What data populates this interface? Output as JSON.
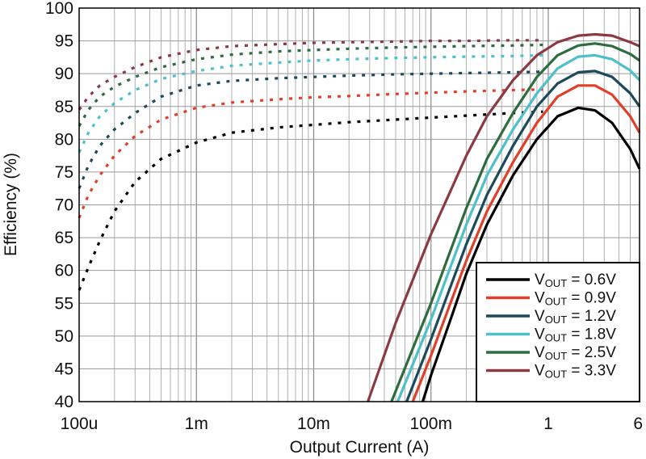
{
  "chart_data": {
    "type": "line",
    "xlabel": "Output Current (A)",
    "ylabel": "Efficiency (%)",
    "x_scale": "log",
    "xlim": [
      0.0001,
      6
    ],
    "ylim": [
      40,
      100
    ],
    "grid": true,
    "x_ticks": [
      {
        "value": 0.0001,
        "label": "100u"
      },
      {
        "value": 0.001,
        "label": "1m"
      },
      {
        "value": 0.01,
        "label": "10m"
      },
      {
        "value": 0.1,
        "label": "100m"
      },
      {
        "value": 1,
        "label": "1"
      },
      {
        "value": 6,
        "label": "6"
      }
    ],
    "y_ticks": [
      40,
      45,
      50,
      55,
      60,
      65,
      70,
      75,
      80,
      85,
      90,
      95,
      100
    ],
    "legend": {
      "placement": "bottom-right",
      "entries": [
        {
          "prefix": "V",
          "sub": "OUT",
          "suffix": " = 0.6V"
        },
        {
          "prefix": "V",
          "sub": "OUT",
          "suffix": " = 0.9V"
        },
        {
          "prefix": "V",
          "sub": "OUT",
          "suffix": " = 1.2V"
        },
        {
          "prefix": "V",
          "sub": "OUT",
          "suffix": " = 1.8V"
        },
        {
          "prefix": "V",
          "sub": "OUT",
          "suffix": " = 2.5V"
        },
        {
          "prefix": "V",
          "sub": "OUT",
          "suffix": " = 3.3V"
        }
      ]
    },
    "series": [
      {
        "name": "VOUT = 0.6V",
        "color": "#000000",
        "light_load_dotted": {
          "x": [
            0.0001,
            0.00012,
            0.00015,
            0.0002,
            0.0003,
            0.0005,
            0.001,
            0.002,
            0.005,
            0.01,
            0.02,
            0.05,
            0.1,
            0.2,
            0.5,
            0.9
          ],
          "y": [
            57,
            60.5,
            64.5,
            69,
            73.5,
            77,
            79.5,
            81,
            81.8,
            82.2,
            82.6,
            83,
            83.3,
            83.6,
            84,
            84.2
          ]
        },
        "heavy_load_solid": {
          "x": [
            0.085,
            0.1,
            0.15,
            0.2,
            0.3,
            0.5,
            0.8,
            1.2,
            1.8,
            2.5,
            3.5,
            5,
            6
          ],
          "y": [
            40,
            44,
            53,
            59.5,
            67,
            74.5,
            80,
            83.5,
            84.8,
            84.4,
            82.5,
            78.5,
            75.5
          ]
        }
      },
      {
        "name": "VOUT = 0.9V",
        "color": "#e0402a",
        "light_load_dotted": {
          "x": [
            0.0001,
            0.00012,
            0.00015,
            0.0002,
            0.0003,
            0.0005,
            0.001,
            0.002,
            0.005,
            0.01,
            0.02,
            0.05,
            0.1,
            0.2,
            0.5,
            0.9
          ],
          "y": [
            68,
            71.5,
            74.5,
            77.5,
            80.5,
            83,
            84.8,
            85.6,
            86.1,
            86.4,
            86.6,
            86.9,
            87.1,
            87.3,
            87.5,
            87.6
          ]
        },
        "heavy_load_solid": {
          "x": [
            0.07,
            0.1,
            0.15,
            0.2,
            0.3,
            0.5,
            0.8,
            1.2,
            1.8,
            2.5,
            3.5,
            5,
            6
          ],
          "y": [
            40,
            47,
            55.5,
            61.5,
            69,
            76.5,
            82.5,
            86.5,
            88.2,
            88.2,
            86.8,
            83.5,
            81
          ]
        }
      },
      {
        "name": "VOUT = 1.2V",
        "color": "#1c4a5a",
        "light_load_dotted": {
          "x": [
            0.0001,
            0.00012,
            0.00015,
            0.0002,
            0.0003,
            0.0005,
            0.001,
            0.002,
            0.005,
            0.01,
            0.02,
            0.05,
            0.1,
            0.2,
            0.5,
            0.9
          ],
          "y": [
            72.5,
            76,
            79,
            81.5,
            84,
            86.5,
            88.2,
            88.9,
            89.3,
            89.5,
            89.7,
            89.9,
            90,
            90.1,
            90.2,
            90.3
          ]
        },
        "heavy_load_solid": {
          "x": [
            0.062,
            0.1,
            0.15,
            0.2,
            0.3,
            0.5,
            0.8,
            1.2,
            1.8,
            2.5,
            3.5,
            5,
            6
          ],
          "y": [
            40,
            49.5,
            58,
            64,
            71.5,
            79,
            85,
            88.5,
            90.2,
            90.4,
            89.5,
            87,
            85
          ]
        }
      },
      {
        "name": "VOUT = 1.8V",
        "color": "#4dc0cc",
        "light_load_dotted": {
          "x": [
            0.0001,
            0.00012,
            0.00015,
            0.0002,
            0.0003,
            0.0005,
            0.001,
            0.002,
            0.005,
            0.01,
            0.02,
            0.05,
            0.1,
            0.2,
            0.5,
            0.9
          ],
          "y": [
            78,
            81,
            83.5,
            85.5,
            87.5,
            89.2,
            90.4,
            91.2,
            91.7,
            92,
            92.2,
            92.4,
            92.5,
            92.6,
            92.7,
            92.8
          ]
        },
        "heavy_load_solid": {
          "x": [
            0.052,
            0.1,
            0.15,
            0.2,
            0.3,
            0.5,
            0.8,
            1.2,
            1.8,
            2.5,
            3.5,
            5,
            6
          ],
          "y": [
            40,
            52.5,
            61,
            67,
            74.5,
            81.5,
            87,
            90.8,
            92.6,
            92.8,
            92.2,
            90.5,
            89
          ]
        }
      },
      {
        "name": "VOUT = 2.5V",
        "color": "#2e6b3e",
        "light_load_dotted": {
          "x": [
            0.0001,
            0.00012,
            0.00015,
            0.0002,
            0.0003,
            0.0005,
            0.001,
            0.002,
            0.005,
            0.01,
            0.02,
            0.05,
            0.1,
            0.2,
            0.5,
            0.9
          ],
          "y": [
            82,
            84.5,
            86.5,
            88,
            89.5,
            91,
            92.2,
            92.9,
            93.4,
            93.6,
            93.8,
            94,
            94.1,
            94.2,
            94.3,
            94.4
          ]
        },
        "heavy_load_solid": {
          "x": [
            0.046,
            0.1,
            0.15,
            0.2,
            0.3,
            0.5,
            0.8,
            1.2,
            1.8,
            2.5,
            3.5,
            5,
            6
          ],
          "y": [
            40,
            55,
            63.5,
            69.5,
            77,
            84,
            89.5,
            92.8,
            94.3,
            94.6,
            94.2,
            93,
            92
          ]
        }
      },
      {
        "name": "VOUT = 3.3V",
        "color": "#8a3a42",
        "light_load_dotted": {
          "x": [
            0.0001,
            0.00012,
            0.00015,
            0.0002,
            0.0003,
            0.0005,
            0.001,
            0.002,
            0.005,
            0.01,
            0.02,
            0.05,
            0.1,
            0.2,
            0.5,
            0.9
          ],
          "y": [
            84.5,
            86.5,
            88.2,
            89.5,
            91,
            92.5,
            93.6,
            94.2,
            94.5,
            94.7,
            94.8,
            94.9,
            95,
            95,
            95.1,
            95.1
          ]
        },
        "heavy_load_solid": {
          "x": [
            0.029,
            0.05,
            0.1,
            0.15,
            0.2,
            0.3,
            0.5,
            0.8,
            1.2,
            1.8,
            2.5,
            3.5,
            5,
            6
          ],
          "y": [
            40,
            52,
            65.5,
            72.5,
            77.5,
            83.5,
            89,
            92.8,
            94.8,
            95.8,
            96,
            95.8,
            94.8,
            94.2
          ]
        }
      }
    ]
  }
}
